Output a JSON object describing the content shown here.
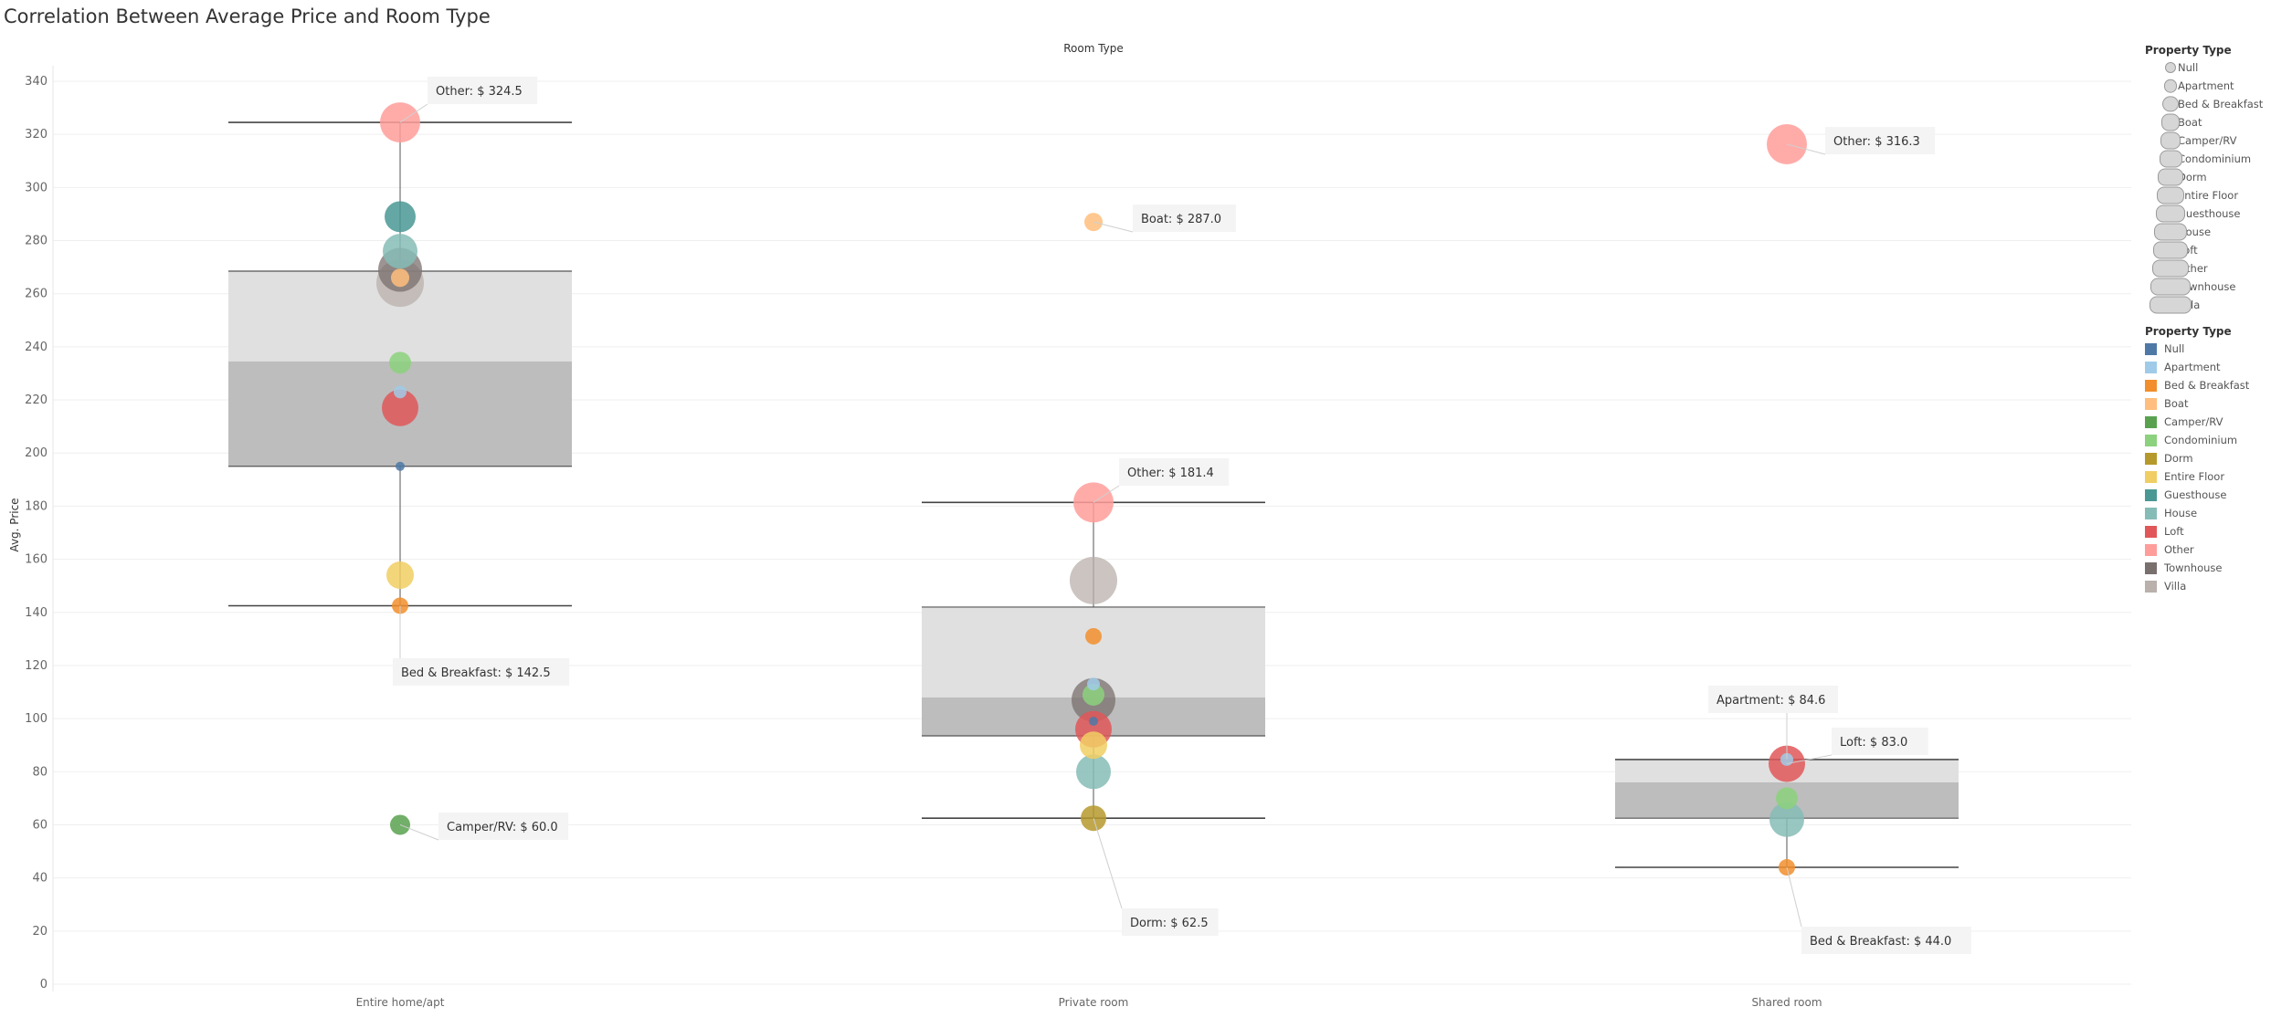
{
  "chart_data": {
    "type": "scatter",
    "title": "Correlation Between Average Price and Room Type",
    "column_header": "Room Type",
    "ylabel": "Avg. Price",
    "ylim": [
      0,
      345
    ],
    "yticks": [
      0,
      20,
      40,
      60,
      80,
      100,
      120,
      140,
      160,
      180,
      200,
      220,
      240,
      260,
      280,
      300,
      320,
      340
    ],
    "categories": [
      "Entire home/apt",
      "Private room",
      "Shared room"
    ],
    "grid": true,
    "legend_position": "right",
    "colors": {
      "Null": "#4e79a7",
      "Apartment": "#a0cbe8",
      "Bed & Breakfast": "#f28e2b",
      "Boat": "#ffbe7d",
      "Camper/RV": "#59a14f",
      "Condominium": "#8cd17d",
      "Dorm": "#b6992d",
      "Entire Floor": "#f1ce63",
      "Guesthouse": "#499894",
      "House": "#86bcb6",
      "Loft": "#e15759",
      "Other": "#ff9d9a",
      "Townhouse": "#79706e",
      "Villa": "#bab0ac"
    },
    "boxes": [
      {
        "category": "Entire home/apt",
        "whisker_low": 142.5,
        "q1": 195,
        "median": 234.5,
        "q3": 268.5,
        "whisker_high": 324.5
      },
      {
        "category": "Private room",
        "whisker_low": 62.5,
        "q1": 93.5,
        "median": 108,
        "q3": 142,
        "whisker_high": 181.4
      },
      {
        "category": "Shared room",
        "whisker_low": 44.0,
        "q1": 62.5,
        "median": 76,
        "q3": 84.6,
        "whisker_high": 84.6
      }
    ],
    "series": [
      {
        "category": "Entire home/apt",
        "points": [
          {
            "property": "Other",
            "value": 324.5,
            "label": "Other: $ 324.5"
          },
          {
            "property": "Guesthouse",
            "value": 289
          },
          {
            "property": "House",
            "value": 276
          },
          {
            "property": "Townhouse",
            "value": 269
          },
          {
            "property": "Villa",
            "value": 264
          },
          {
            "property": "Boat",
            "value": 266
          },
          {
            "property": "Condominium",
            "value": 234
          },
          {
            "property": "Apartment",
            "value": 223
          },
          {
            "property": "Loft",
            "value": 217
          },
          {
            "property": "Null",
            "value": 195
          },
          {
            "property": "Entire Floor",
            "value": 154
          },
          {
            "property": "Bed & Breakfast",
            "value": 142.5,
            "label": "Bed & Breakfast: $ 142.5"
          },
          {
            "property": "Camper/RV",
            "value": 60.0,
            "label": "Camper/RV: $ 60.0"
          }
        ]
      },
      {
        "category": "Private room",
        "points": [
          {
            "property": "Boat",
            "value": 287.0,
            "label": "Boat: $ 287.0"
          },
          {
            "property": "Other",
            "value": 181.4,
            "label": "Other: $ 181.4"
          },
          {
            "property": "Villa",
            "value": 152
          },
          {
            "property": "Bed & Breakfast",
            "value": 131
          },
          {
            "property": "Apartment",
            "value": 113
          },
          {
            "property": "Townhouse",
            "value": 107
          },
          {
            "property": "Condominium",
            "value": 109
          },
          {
            "property": "Loft",
            "value": 96
          },
          {
            "property": "Null",
            "value": 99
          },
          {
            "property": "Entire Floor",
            "value": 90
          },
          {
            "property": "House",
            "value": 80
          },
          {
            "property": "Dorm",
            "value": 62.5,
            "label": "Dorm: $ 62.5"
          }
        ]
      },
      {
        "category": "Shared room",
        "points": [
          {
            "property": "Other",
            "value": 316.3,
            "label": "Other: $ 316.3"
          },
          {
            "property": "Loft",
            "value": 83.0,
            "label": "Loft: $ 83.0"
          },
          {
            "property": "Apartment",
            "value": 84.6,
            "label": "Apartment: $ 84.6"
          },
          {
            "property": "Condominium",
            "value": 70
          },
          {
            "property": "House",
            "value": 62
          },
          {
            "property": "Bed & Breakfast",
            "value": 44.0,
            "label": "Bed & Breakfast: $ 44.0"
          }
        ]
      }
    ],
    "legend_size": {
      "title": "Property Type",
      "items": [
        "Null",
        "Apartment",
        "Bed & Breakfast",
        "Boat",
        "Camper/RV",
        "Condominium",
        "Dorm",
        "Entire Floor",
        "Guesthouse",
        "House",
        "Loft",
        "Other",
        "Townhouse",
        "Villa"
      ]
    },
    "legend_color": {
      "title": "Property Type",
      "items": [
        "Null",
        "Apartment",
        "Bed & Breakfast",
        "Boat",
        "Camper/RV",
        "Condominium",
        "Dorm",
        "Entire Floor",
        "Guesthouse",
        "House",
        "Loft",
        "Other",
        "Townhouse",
        "Villa"
      ]
    }
  }
}
